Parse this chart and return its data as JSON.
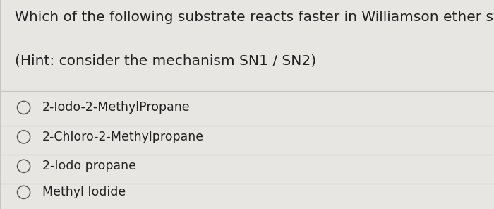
{
  "question_line1": "Which of the following substrate reacts faster in Williamson ether synthesis",
  "question_line2": "(Hint: consider the mechanism SN1 / SN2)",
  "options": [
    "2-Iodo-2-MethylPropane",
    "2-Chloro-2-Methylpropane",
    "2-Iodo propane",
    "Methyl Iodide"
  ],
  "background_color": "#e8e6e3",
  "text_color": "#222222",
  "line_color": "#c8c5c0",
  "circle_color": "#555555",
  "question_fontsize": 14.5,
  "option_fontsize": 12.5,
  "figwidth": 7.0,
  "figheight": 2.96
}
